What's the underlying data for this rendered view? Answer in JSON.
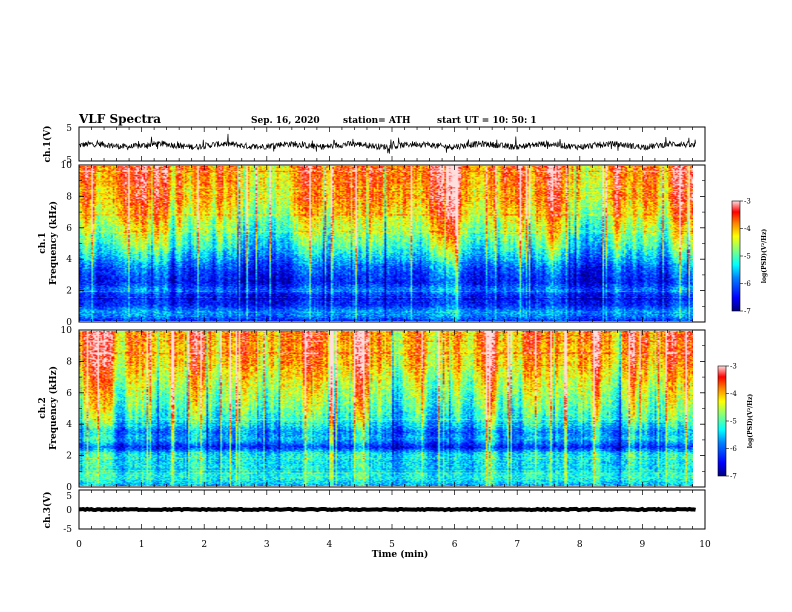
{
  "header": {
    "title": "VLF Spectra",
    "date": "Sep. 16, 2020",
    "station": "station= ATH",
    "start": "start  UT  =   10: 50: 1"
  },
  "chart_data": [
    {
      "type": "line",
      "panel": "ch1-waveform",
      "ylabel": "ch.1(V)",
      "ylim": [
        -5,
        5
      ],
      "yticks": [
        "5",
        "-5"
      ],
      "xlim": [
        0,
        10
      ],
      "baseline": -0.4,
      "amplitude": 1.8
    },
    {
      "type": "heatmap",
      "panel": "ch1-spectrogram",
      "ylabel": "ch.1\nFrequency  (kHz)",
      "ylim": [
        0,
        10
      ],
      "yticks": [
        "0",
        "2",
        "4",
        "6",
        "8",
        "10"
      ],
      "xlim": [
        0,
        9.85
      ],
      "colorbar": {
        "ticks": [
          "-3",
          "-4",
          "-5",
          "-6",
          "-7"
        ],
        "label": "log(PSD)(V²/Hz)",
        "range": [
          -7,
          -3
        ]
      },
      "profile_kHz": [
        0,
        0.5,
        1,
        1.5,
        2,
        2.5,
        3,
        3.5,
        4,
        5,
        6,
        7,
        8,
        10
      ],
      "profile_logpsd": [
        -6.2,
        -5.6,
        -6.3,
        -6.5,
        -5.9,
        -6.4,
        -6.2,
        -6.0,
        -5.6,
        -5.0,
        -4.6,
        -4.2,
        -3.9,
        -3.7
      ]
    },
    {
      "type": "heatmap",
      "panel": "ch2-spectrogram",
      "ylabel": "ch.2\nFrequency  (kHz)",
      "ylim": [
        0,
        10
      ],
      "yticks": [
        "0",
        "2",
        "4",
        "6",
        "8",
        "10"
      ],
      "xlim": [
        0,
        9.85
      ],
      "colorbar": {
        "ticks": [
          "-3",
          "-4",
          "-5",
          "-6",
          "-7"
        ],
        "label": "log(PSD)(V²/Hz)",
        "range": [
          -7,
          -3
        ]
      },
      "profile_kHz": [
        0,
        0.5,
        1,
        1.5,
        2,
        2.5,
        3,
        3.5,
        4,
        5,
        6,
        7,
        8,
        10
      ],
      "profile_logpsd": [
        -5.6,
        -5.2,
        -5.3,
        -5.4,
        -5.3,
        -6.3,
        -5.6,
        -5.8,
        -5.3,
        -4.9,
        -4.6,
        -4.3,
        -4.0,
        -3.8
      ]
    },
    {
      "type": "line",
      "panel": "ch3-waveform",
      "ylabel": "ch.3(V)",
      "ylim": [
        -5,
        5
      ],
      "yticks": [
        "5",
        "0",
        "-5"
      ],
      "xlim": [
        0,
        10
      ],
      "baseline": 0,
      "amplitude": 0.3
    }
  ],
  "xaxis": {
    "label": "Time  (min)",
    "ticks": [
      "0",
      "1",
      "2",
      "3",
      "4",
      "5",
      "6",
      "7",
      "8",
      "9",
      "10"
    ]
  },
  "colors": {
    "jet": [
      "#00007f",
      "#0000ff",
      "#0080ff",
      "#00ffff",
      "#80ff80",
      "#ffff00",
      "#ff8000",
      "#ff0000",
      "#ffdede"
    ]
  }
}
